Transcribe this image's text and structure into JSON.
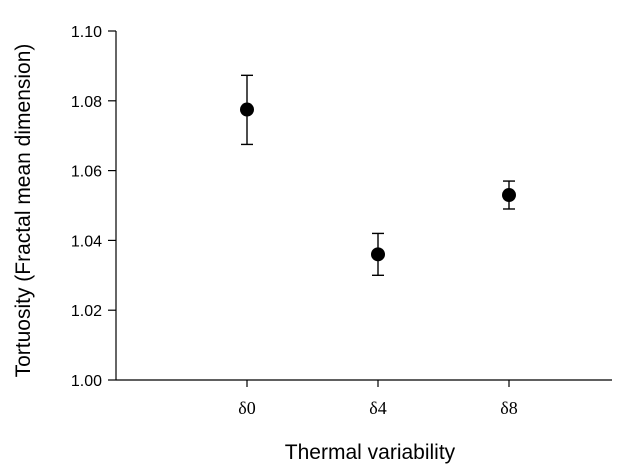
{
  "chart_data": {
    "type": "scatter",
    "xlabel": "Thermal variability",
    "ylabel": "Tortuosity (Fractal mean dimension)",
    "categories": [
      "δ0",
      "δ4",
      "δ8"
    ],
    "ylim": [
      1.0,
      1.1
    ],
    "yticks": [
      "1.00",
      "1.02",
      "1.04",
      "1.06",
      "1.08",
      "1.10"
    ],
    "grid": false,
    "series": [
      {
        "values": [
          1.0775,
          1.036,
          1.053
        ],
        "err_low": [
          1.0675,
          1.03,
          1.049
        ],
        "err_high": [
          1.0873,
          1.042,
          1.057
        ]
      }
    ]
  }
}
